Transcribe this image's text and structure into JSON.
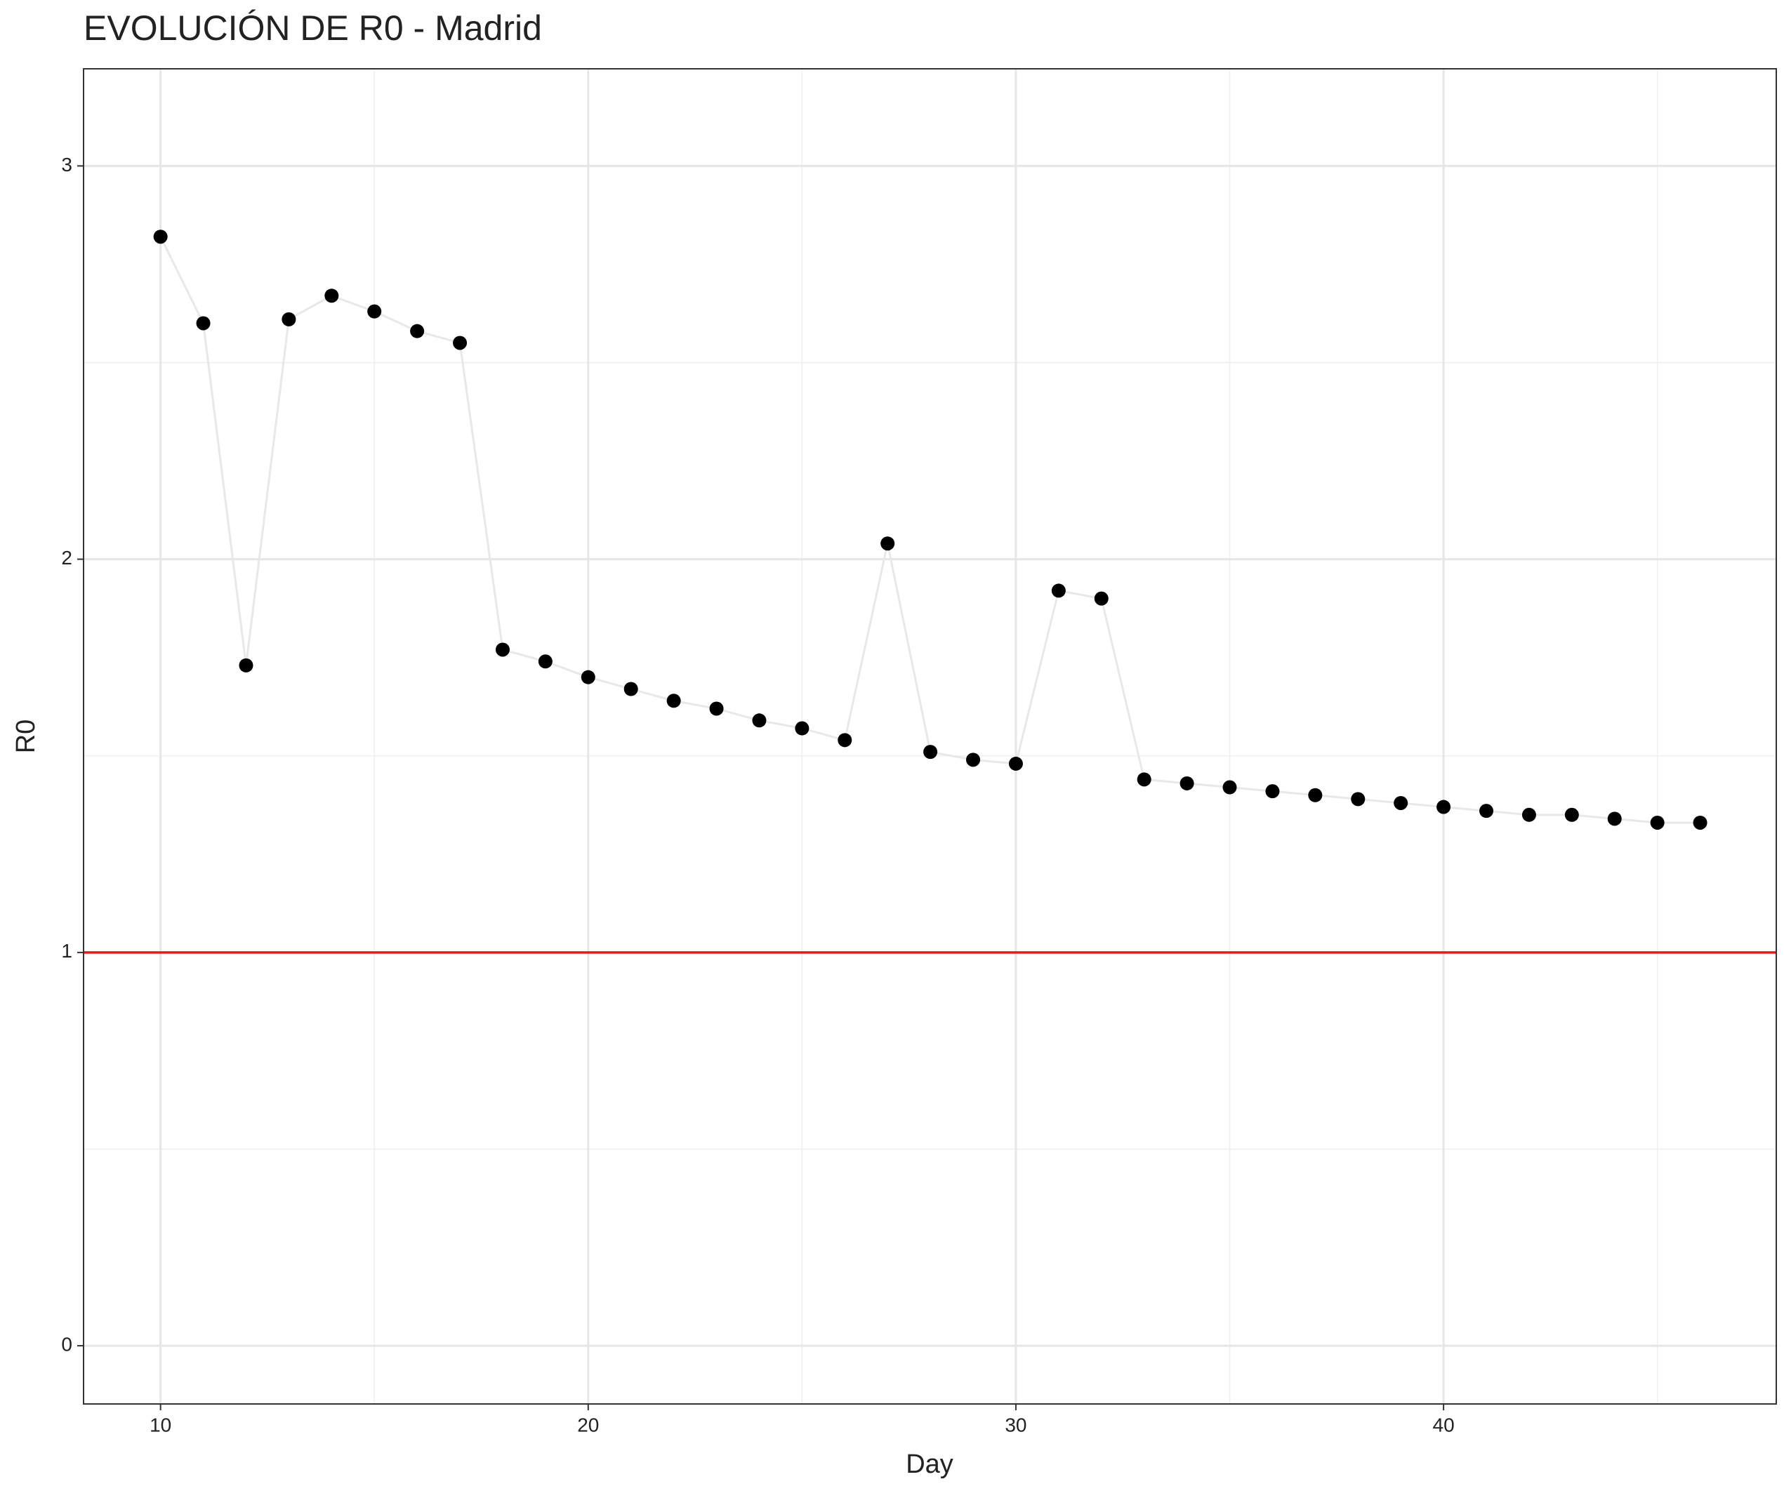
{
  "chart_data": {
    "type": "line",
    "title": "EVOLUCIÓN DE R0 - Madrid",
    "x_label": "Day",
    "y_label": "R0",
    "x": [
      10,
      11,
      12,
      13,
      14,
      15,
      16,
      17,
      18,
      19,
      20,
      21,
      22,
      23,
      24,
      25,
      26,
      27,
      28,
      29,
      30,
      31,
      32,
      33,
      34,
      35,
      36,
      37,
      38,
      39,
      40,
      41,
      42,
      43,
      44,
      45,
      46
    ],
    "series": [
      {
        "name": "R0",
        "color": "#000000",
        "line_color": "#e8e8e8",
        "values": [
          2.82,
          2.6,
          1.73,
          2.61,
          2.67,
          2.63,
          2.58,
          2.55,
          1.77,
          1.74,
          1.7,
          1.67,
          1.64,
          1.62,
          1.59,
          1.57,
          1.54,
          2.04,
          1.51,
          1.49,
          1.48,
          1.92,
          1.9,
          1.44,
          1.43,
          1.42,
          1.41,
          1.4,
          1.39,
          1.38,
          1.37,
          1.36,
          1.35,
          1.35,
          1.34,
          1.33,
          1.33
        ]
      }
    ],
    "reference_line": {
      "value": 1,
      "color": "#e41a1c"
    },
    "xlim": [
      8.2,
      47.78
    ],
    "ylim": [
      -0.148,
      3.247
    ],
    "xticks": [
      10,
      20,
      30,
      40
    ],
    "yticks": [
      0,
      1,
      2,
      3
    ],
    "grid": true
  }
}
